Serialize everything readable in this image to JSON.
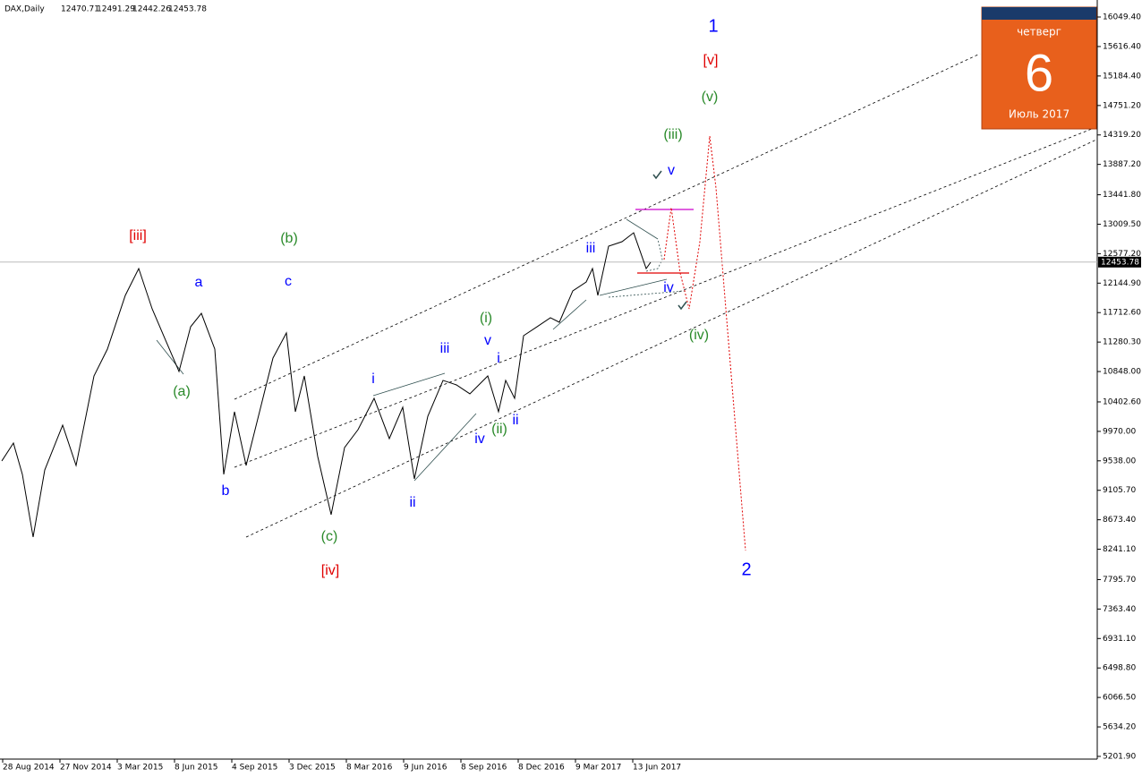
{
  "chart_data": {
    "type": "line",
    "title": "DAX,Daily",
    "ohlc": [
      "12470.71",
      "12491.29",
      "12442.26",
      "12453.78"
    ],
    "series": [
      {
        "name": "DAX",
        "color": "#000000",
        "x": [
          -1,
          12,
          22,
          34,
          47,
          67,
          82,
          102,
          117,
          137,
          152,
          167,
          182,
          197,
          210,
          222,
          237,
          247,
          259,
          272,
          287,
          302,
          317,
          327,
          337,
          352,
          367,
          382,
          397,
          415,
          432,
          447,
          460,
          475,
          492,
          507,
          522,
          542,
          554,
          562,
          572,
          582,
          597,
          612,
          622,
          637,
          652,
          659,
          665,
          677,
          692,
          705,
          712,
          719,
          724
        ],
        "values": [
          9536,
          9798,
          9339,
          8420,
          9404,
          10061,
          9470,
          10783,
          11177,
          11965,
          12359,
          11768,
          11308,
          10849,
          11505,
          11702,
          11177,
          9339,
          10258,
          9470,
          10258,
          11046,
          11414,
          10258,
          10783,
          9601,
          8748,
          9733,
          9995,
          10455,
          9864,
          10324,
          9273,
          10192,
          10718,
          10652,
          10521,
          10783,
          10258,
          10718,
          10455,
          11374,
          11505,
          11637,
          11571,
          12031,
          12162,
          12359,
          11965,
          12687,
          12753,
          12884,
          12622,
          12359,
          12451
        ]
      }
    ],
    "last_price": 12453.78,
    "xlim": [
      -3,
      1223
    ],
    "xticks": [
      {
        "value": 0,
        "label": "28 Aug 2014"
      },
      {
        "value": 64,
        "label": "27 Nov 2014"
      },
      {
        "value": 128,
        "label": "3 Mar 2015"
      },
      {
        "value": 192,
        "label": "8 Jun 2015"
      },
      {
        "value": 256,
        "label": "4 Sep 2015"
      },
      {
        "value": 320,
        "label": "3 Dec 2015"
      },
      {
        "value": 384,
        "label": "8 Mar 2016"
      },
      {
        "value": 448,
        "label": "9 Jun 2016"
      },
      {
        "value": 512,
        "label": "8 Sep 2016"
      },
      {
        "value": 576,
        "label": "8 Dec 2016"
      },
      {
        "value": 640,
        "label": "9 Mar 2017"
      },
      {
        "value": 704,
        "label": "13 Jun 2017"
      }
    ],
    "ylim": [
      5162,
      16299
    ],
    "yticks": [
      {
        "value": 16049.4,
        "label": "16049.40"
      },
      {
        "value": 15616.4,
        "label": "15616.40"
      },
      {
        "value": 15184.4,
        "label": "15184.40"
      },
      {
        "value": 14751.2,
        "label": "14751.20"
      },
      {
        "value": 14319.2,
        "label": "14319.20"
      },
      {
        "value": 13887.2,
        "label": "13887.20"
      },
      {
        "value": 13441.8,
        "label": "13441.80"
      },
      {
        "value": 13009.5,
        "label": "13009.50"
      },
      {
        "value": 12577.2,
        "label": "12577.20"
      },
      {
        "value": 12144.9,
        "label": "12144.90"
      },
      {
        "value": 11712.6,
        "label": "11712.60"
      },
      {
        "value": 11280.3,
        "label": "11280.30"
      },
      {
        "value": 10848,
        "label": "10848.00"
      },
      {
        "value": 10402.6,
        "label": "10402.60"
      },
      {
        "value": 9970,
        "label": "9970.00"
      },
      {
        "value": 9538,
        "label": "9538.00"
      },
      {
        "value": 9105.7,
        "label": "9105.70"
      },
      {
        "value": 8673.4,
        "label": "8673.40"
      },
      {
        "value": 8241.1,
        "label": "8241.10"
      },
      {
        "value": 7795.7,
        "label": "7795.70"
      },
      {
        "value": 7363.4,
        "label": "7363.40"
      },
      {
        "value": 6931.1,
        "label": "6931.10"
      },
      {
        "value": 6498.8,
        "label": "6498.80"
      },
      {
        "value": 6066.5,
        "label": "6066.50"
      },
      {
        "value": 5634.2,
        "label": "5634.20"
      },
      {
        "value": 5201.9,
        "label": "5201.90"
      }
    ],
    "annotations": [
      {
        "text": "1",
        "color": "#0000ff"
      },
      {
        "text": "[v]",
        "color": "#e00000"
      },
      {
        "text": "(v)",
        "color": "#2a8a2a"
      },
      {
        "text": "(iii)",
        "color": "#2a8a2a"
      },
      {
        "text": "v",
        "color": "#0000ff"
      },
      {
        "text": "[iii]",
        "color": "#e00000"
      },
      {
        "text": "(b)",
        "color": "#2a8a2a"
      },
      {
        "text": "a",
        "color": "#0000ff"
      },
      {
        "text": "c",
        "color": "#0000ff"
      },
      {
        "text": "iii",
        "color": "#0000ff"
      },
      {
        "text": "iv",
        "color": "#0000ff"
      },
      {
        "text": "(i)",
        "color": "#2a8a2a"
      },
      {
        "text": "v",
        "color": "#0000ff"
      },
      {
        "text": "iii",
        "color": "#0000ff"
      },
      {
        "text": "i",
        "color": "#0000ff"
      },
      {
        "text": "i",
        "color": "#0000ff"
      },
      {
        "text": "(a)",
        "color": "#2a8a2a"
      },
      {
        "text": "ii",
        "color": "#0000ff"
      },
      {
        "text": "(ii)",
        "color": "#2a8a2a"
      },
      {
        "text": "iv",
        "color": "#0000ff"
      },
      {
        "text": "(iv)",
        "color": "#2a8a2a"
      },
      {
        "text": "b",
        "color": "#0000ff"
      },
      {
        "text": "ii",
        "color": "#0000ff"
      },
      {
        "text": "(c)",
        "color": "#2a8a2a"
      },
      {
        "text": "[iv]",
        "color": "#e00000"
      },
      {
        "text": "2",
        "color": "#0000ff"
      }
    ]
  },
  "calendar": {
    "weekday": "четверг",
    "day": "6",
    "month": "Июль 2017"
  }
}
